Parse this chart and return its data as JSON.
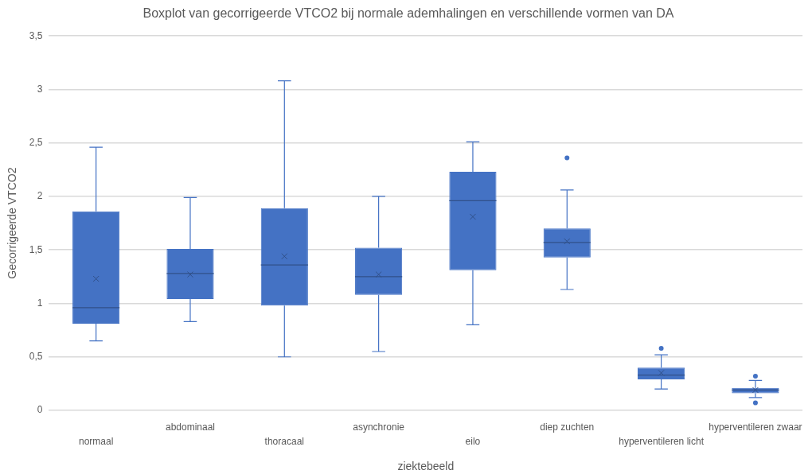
{
  "chart_data": {
    "type": "box",
    "title": "Boxplot van gecorrigeerde VTCO2 bij normale ademhalingen en verschillende vormen van DA",
    "xlabel": "ziektebeeld",
    "ylabel": "Gecorrigeerde VTCO2",
    "categories": [
      "normaal",
      "abdominaal",
      "thoracaal",
      "asynchronie",
      "eilo",
      "diep zuchten",
      "hyperventileren licht",
      "hyperventileren zwaar"
    ],
    "color": "#4472c4",
    "boxes": [
      {
        "low": 0.65,
        "q1": 0.81,
        "median": 0.96,
        "q3": 1.86,
        "high": 2.46,
        "mean": 1.23
      },
      {
        "low": 0.83,
        "q1": 1.04,
        "median": 1.28,
        "q3": 1.51,
        "high": 1.99,
        "mean": 1.27
      },
      {
        "low": 0.5,
        "q1": 0.98,
        "median": 1.36,
        "q3": 1.89,
        "high": 3.08,
        "mean": 1.44
      },
      {
        "low": 0.55,
        "q1": 1.08,
        "median": 1.25,
        "q3": 1.52,
        "high": 2.0,
        "mean": 1.27
      },
      {
        "low": 0.8,
        "q1": 1.31,
        "median": 1.96,
        "q3": 2.23,
        "high": 2.51,
        "mean": 1.81
      },
      {
        "low": 1.13,
        "q1": 1.43,
        "median": 1.57,
        "q3": 1.7,
        "high": 2.06,
        "mean": 1.58,
        "outliers": [
          2.36
        ]
      },
      {
        "low": 0.2,
        "q1": 0.29,
        "median": 0.33,
        "q3": 0.4,
        "high": 0.52,
        "mean": 0.35,
        "outliers": [
          0.58
        ]
      },
      {
        "low": 0.12,
        "q1": 0.16,
        "median": 0.19,
        "q3": 0.21,
        "high": 0.28,
        "mean": 0.19,
        "outliers": [
          0.32,
          0.07
        ]
      }
    ],
    "ylim": [
      0,
      3.5
    ],
    "yticks": [
      0,
      {
        "value": 0.5,
        "label": "0,5"
      },
      1,
      {
        "value": 1.5,
        "label": "1,5"
      },
      2,
      {
        "value": 2.5,
        "label": "2,5"
      },
      3,
      {
        "value": 3.5,
        "label": "3,5"
      }
    ],
    "grid": "y"
  }
}
